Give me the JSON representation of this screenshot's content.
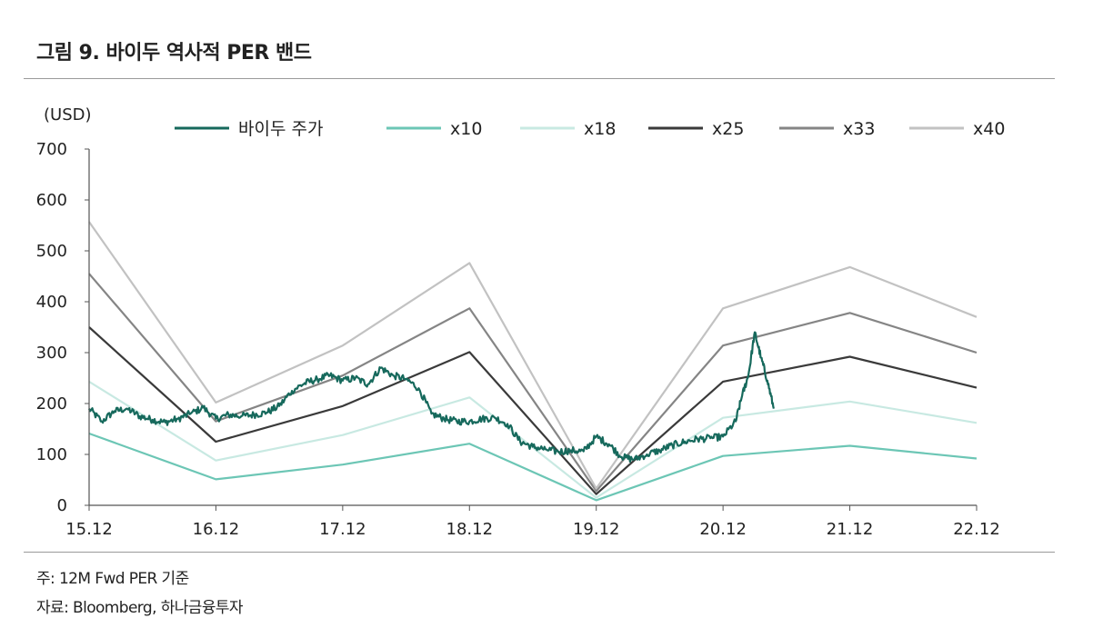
{
  "title": "그림 9. 바이두 역사적 PER 밴드",
  "notes": {
    "note": "주: 12M Fwd PER 기준",
    "source": "자료: Bloomberg, 하나금융투자"
  },
  "chart_data": {
    "type": "line",
    "ylabel": "(USD)",
    "ylim": [
      0,
      700
    ],
    "yticks": [
      0,
      100,
      200,
      300,
      400,
      500,
      600,
      700
    ],
    "categories": [
      "15.12",
      "16.12",
      "17.12",
      "18.12",
      "19.12",
      "20.12",
      "21.12",
      "22.12"
    ],
    "legend_position": "top",
    "grid": false,
    "series": [
      {
        "name": "x10",
        "color": "#6cc6b5",
        "values": [
          141,
          51,
          80,
          121,
          10,
          97,
          117,
          92
        ]
      },
      {
        "name": "x18",
        "color": "#c8e9e2",
        "values": [
          243,
          88,
          138,
          212,
          15,
          172,
          204,
          162
        ]
      },
      {
        "name": "x25",
        "color": "#3a3a3a",
        "values": [
          350,
          125,
          195,
          301,
          22,
          243,
          292,
          231
        ]
      },
      {
        "name": "x33",
        "color": "#858585",
        "values": [
          455,
          165,
          255,
          387,
          28,
          314,
          378,
          300
        ]
      },
      {
        "name": "x40",
        "color": "#c2c2c2",
        "values": [
          557,
          202,
          314,
          476,
          33,
          387,
          468,
          370
        ]
      }
    ],
    "price_series": {
      "name": "바이두 주가",
      "color": "#16695c",
      "x": [
        0,
        0.1,
        0.2,
        0.3,
        0.4,
        0.5,
        0.6,
        0.7,
        0.8,
        0.9,
        1.0,
        1.1,
        1.2,
        1.3,
        1.4,
        1.5,
        1.6,
        1.7,
        1.8,
        1.9,
        2.0,
        2.1,
        2.2,
        2.3,
        2.4,
        2.5,
        2.6,
        2.7,
        2.8,
        2.9,
        3.0,
        3.1,
        3.2,
        3.3,
        3.4,
        3.5,
        3.6,
        3.7,
        3.8,
        3.9,
        4.0,
        4.1,
        4.2,
        4.3,
        4.4,
        4.5,
        4.6,
        4.7,
        4.8,
        4.9,
        5.0,
        5.1,
        5.15,
        5.2,
        5.25,
        5.3,
        5.35,
        5.4
      ],
      "values": [
        190,
        165,
        185,
        190,
        175,
        168,
        163,
        170,
        180,
        192,
        170,
        178,
        175,
        178,
        182,
        195,
        225,
        240,
        248,
        255,
        245,
        250,
        238,
        270,
        255,
        248,
        230,
        180,
        170,
        165,
        165,
        170,
        172,
        160,
        125,
        115,
        110,
        105,
        108,
        106,
        135,
        120,
        95,
        90,
        100,
        108,
        118,
        125,
        130,
        132,
        135,
        165,
        215,
        255,
        340,
        290,
        245,
        190
      ]
    }
  }
}
